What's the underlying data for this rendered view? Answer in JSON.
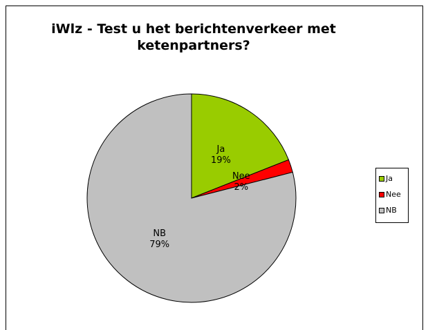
{
  "chart_data": {
    "type": "pie",
    "title": "iWlz - Test u het berichtenverkeer met ketenpartners?",
    "categories": [
      "Ja",
      "Nee",
      "NB"
    ],
    "values": [
      19,
      2,
      79
    ],
    "value_labels": [
      "19%",
      "2%",
      "79%"
    ],
    "colors": [
      "#99cc00",
      "#ff0000",
      "#c0c0c0"
    ],
    "legend": "right"
  }
}
